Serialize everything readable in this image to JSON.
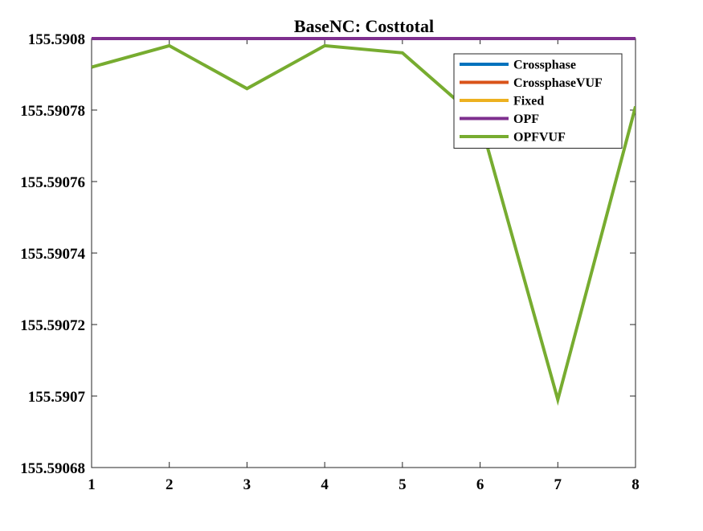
{
  "chart_data": {
    "type": "line",
    "title": "BaseNC: Costtotal",
    "xlabel": "",
    "ylabel": "",
    "x": [
      1,
      2,
      3,
      4,
      5,
      6,
      7,
      8
    ],
    "xlim": [
      1,
      8
    ],
    "ylim": [
      155.59068,
      155.5908
    ],
    "xticks": [
      1,
      2,
      3,
      4,
      5,
      6,
      7,
      8
    ],
    "xtick_labels": [
      "1",
      "2",
      "3",
      "4",
      "5",
      "6",
      "7",
      "8"
    ],
    "yticks": [
      155.59068,
      155.5907,
      155.59072,
      155.59074,
      155.59076,
      155.59078,
      155.5908
    ],
    "ytick_labels": [
      "155.59068",
      "155.5907",
      "155.59072",
      "155.59074",
      "155.59076",
      "155.59078",
      "155.5908"
    ],
    "grid": false,
    "legend_position": "top-right",
    "series": [
      {
        "name": "Crossphase",
        "color": "#0072BD",
        "values": [
          155.5908,
          155.5908,
          155.5908,
          155.5908,
          155.5908,
          155.5908,
          155.5908,
          155.5908
        ]
      },
      {
        "name": "CrossphaseVUF",
        "color": "#D95319",
        "values": [
          155.5908,
          155.5908,
          155.5908,
          155.5908,
          155.5908,
          155.5908,
          155.5908,
          155.5908
        ]
      },
      {
        "name": "Fixed",
        "color": "#EDB120",
        "values": [
          155.5908,
          155.5908,
          155.5908,
          155.5908,
          155.5908,
          155.5908,
          155.5908,
          155.5908
        ]
      },
      {
        "name": "OPF",
        "color": "#7E2F8E",
        "values": [
          155.5908,
          155.5908,
          155.5908,
          155.5908,
          155.5908,
          155.5908,
          155.5908,
          155.5908
        ]
      },
      {
        "name": "OPFVUF",
        "color": "#77AC30",
        "values": [
          155.590792,
          155.590798,
          155.590786,
          155.590798,
          155.590796,
          155.590777,
          155.590699,
          155.590781
        ]
      }
    ]
  }
}
